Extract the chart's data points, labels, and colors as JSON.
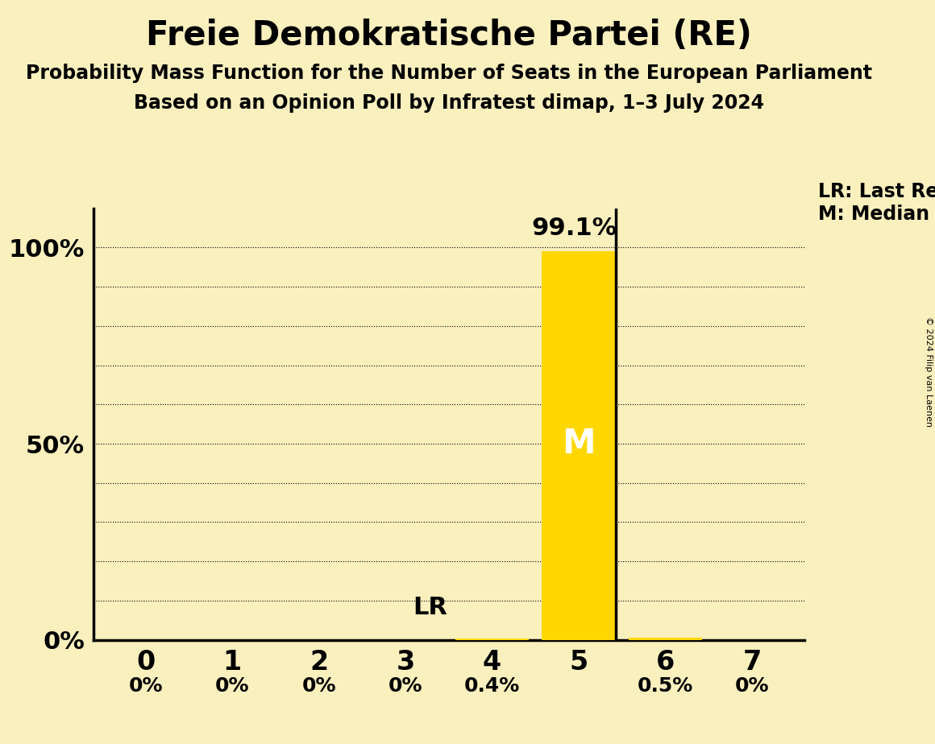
{
  "title": "Freie Demokratische Partei (RE)",
  "subtitle1": "Probability Mass Function for the Number of Seats in the European Parliament",
  "subtitle2": "Based on an Opinion Poll by Infratest dimap, 1–3 July 2024",
  "copyright": "© 2024 Filip van Laenen",
  "seats": [
    0,
    1,
    2,
    3,
    4,
    5,
    6,
    7
  ],
  "probabilities": [
    0.0,
    0.0,
    0.0,
    0.0,
    0.004,
    0.991,
    0.005,
    0.0
  ],
  "prob_labels": [
    "0%",
    "0%",
    "0%",
    "0%",
    "0.4%",
    "99.1%",
    "0.5%",
    "0%"
  ],
  "bar_color": "#FFD700",
  "median_seat": 5,
  "last_result_seat": 5,
  "lr_label": "LR",
  "legend_lr": "LR: Last Result",
  "legend_m": "M: Median",
  "background_color": "#FAF0BE",
  "ytick_labels": [
    "0%",
    "50%",
    "100%"
  ],
  "ytick_values": [
    0.0,
    0.5,
    1.0
  ],
  "ylim": [
    0,
    1.1
  ]
}
